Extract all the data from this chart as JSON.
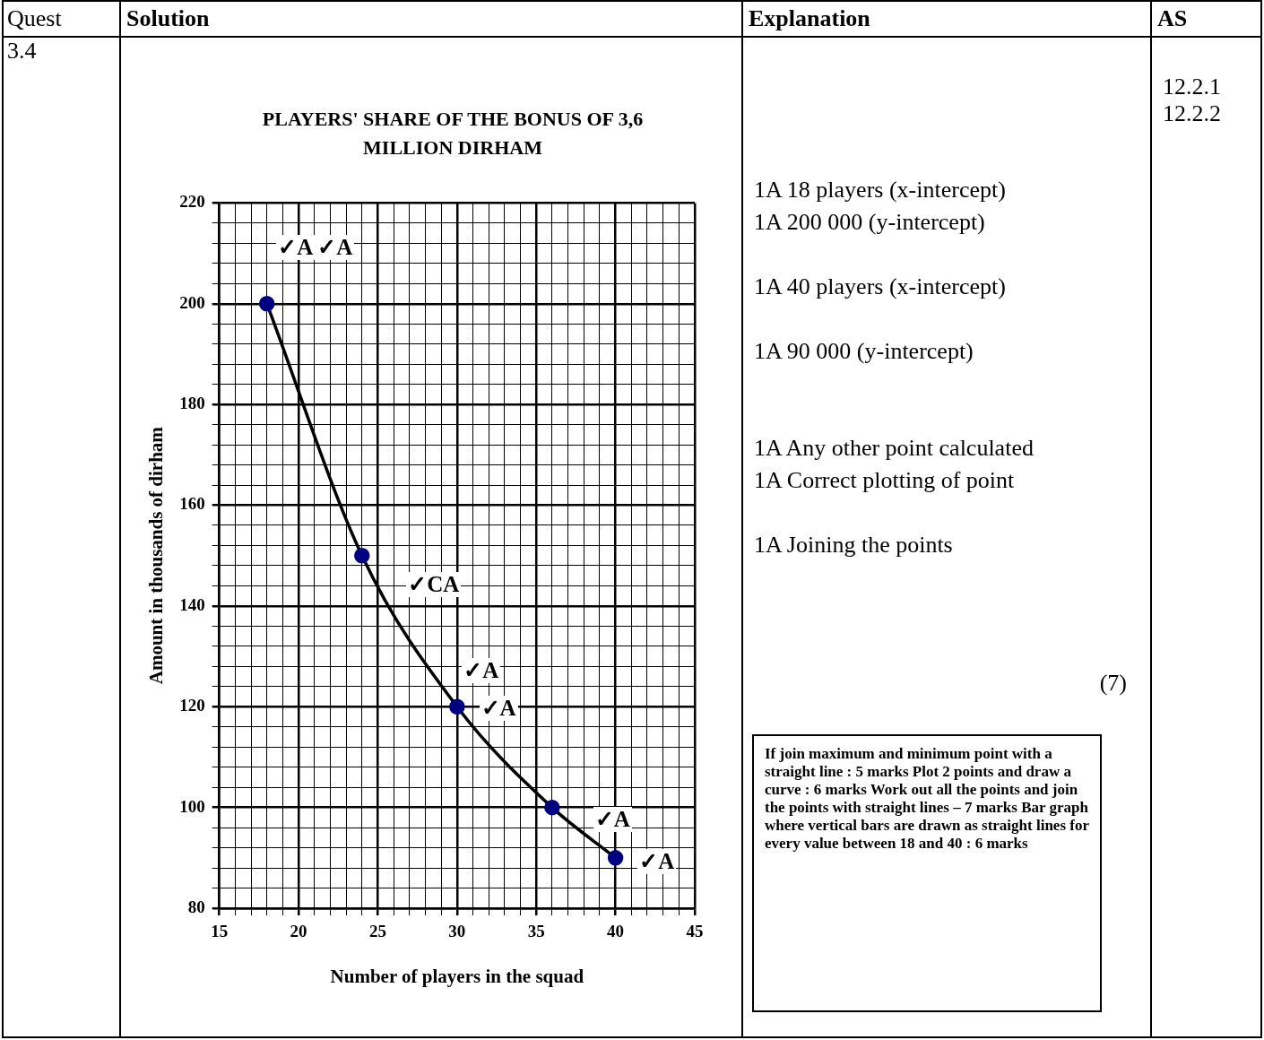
{
  "chart_data": {
    "type": "line",
    "title": "PLAYERS' SHARE OF THE BONUS OF 3,6 MILLION DIRHAM",
    "xlabel": "Number of players in the squad",
    "ylabel": "Amount in thousands of dirham",
    "x": [
      18,
      24,
      30,
      36,
      40
    ],
    "series": [
      {
        "color": "#000000",
        "colors": [
          "#000080",
          "#000080",
          "#000080",
          "#000080",
          "#000080"
        ],
        "values": [
          200,
          150,
          120,
          100,
          90
        ]
      }
    ],
    "marker": "circle",
    "line_style": "solid",
    "grid": true,
    "legend": false,
    "xlim": [
      15,
      45
    ],
    "ylim": [
      80,
      220
    ],
    "xticks": [
      15,
      {
        "value": 16,
        "label": null
      },
      {
        "value": 17,
        "label": null
      },
      {
        "value": 18,
        "label": null
      },
      {
        "value": 19,
        "label": null
      },
      20,
      {
        "value": 21,
        "label": null
      },
      {
        "value": 22,
        "label": null
      },
      {
        "value": 23,
        "label": null
      },
      {
        "value": 24,
        "label": null
      },
      25,
      {
        "value": 26,
        "label": null
      },
      {
        "value": 27,
        "label": null
      },
      {
        "value": 28,
        "label": null
      },
      {
        "value": 29,
        "label": null
      },
      30,
      {
        "value": 31,
        "label": null
      },
      {
        "value": 32,
        "label": null
      },
      {
        "value": 33,
        "label": null
      },
      {
        "value": 34,
        "label": null
      },
      35,
      {
        "value": 36,
        "label": null
      },
      {
        "value": 37,
        "label": null
      },
      {
        "value": 38,
        "label": null
      },
      {
        "value": 39,
        "label": null
      },
      40,
      {
        "value": 41,
        "label": null
      },
      {
        "value": 42,
        "label": null
      },
      {
        "value": 43,
        "label": null
      },
      {
        "value": 44,
        "label": null
      },
      45
    ],
    "yticks": [
      80,
      {
        "value": 84,
        "label": null
      },
      {
        "value": 88,
        "label": null
      },
      {
        "value": 92,
        "label": null
      },
      {
        "value": 96,
        "label": null
      },
      100,
      {
        "value": 104,
        "label": null
      },
      {
        "value": 108,
        "label": null
      },
      {
        "value": 112,
        "label": null
      },
      {
        "value": 116,
        "label": null
      },
      120,
      {
        "value": 124,
        "label": null
      },
      {
        "value": 128,
        "label": null
      },
      {
        "value": 132,
        "label": null
      },
      {
        "value": 136,
        "label": null
      },
      140,
      {
        "value": 144,
        "label": null
      },
      {
        "value": 148,
        "label": null
      },
      {
        "value": 152,
        "label": null
      },
      {
        "value": 156,
        "label": null
      },
      160,
      {
        "value": 164,
        "label": null
      },
      {
        "value": 168,
        "label": null
      },
      {
        "value": 172,
        "label": null
      },
      {
        "value": 176,
        "label": null
      },
      180,
      {
        "value": 184,
        "label": null
      },
      {
        "value": 188,
        "label": null
      },
      {
        "value": 192,
        "label": null
      },
      {
        "value": 196,
        "label": null
      },
      200,
      {
        "value": 204,
        "label": null
      },
      {
        "value": 208,
        "label": null
      },
      {
        "value": 212,
        "label": null
      },
      {
        "value": 216,
        "label": null
      },
      220
    ],
    "annotations": [
      "Quest",
      "Solution",
      "Explanation",
      "AS",
      "3.4",
      "12.2.1",
      "12.2.2",
      "1A 18 players  (x-intercept)",
      "1A 200 000  (y-intercept)",
      "1A 40 players  (x-intercept)",
      "1A 90 000  (y-intercept)",
      "1A Any other point calculated",
      "1A Correct plotting of point",
      "1A Joining the points",
      "(7)",
      "If join maximum and minimum point with a straight line :  5 marks Plot 2 points and draw a curve :  6 marks Work out all the points and join the points with straight lines – 7 marks Bar graph where vertical  bars are drawn as straight lines for every value between 18 and 40 :   6 marks",
      "✓A ✓A",
      "✓CA",
      "✓A",
      "✓A",
      "✓A",
      "✓A"
    ]
  }
}
